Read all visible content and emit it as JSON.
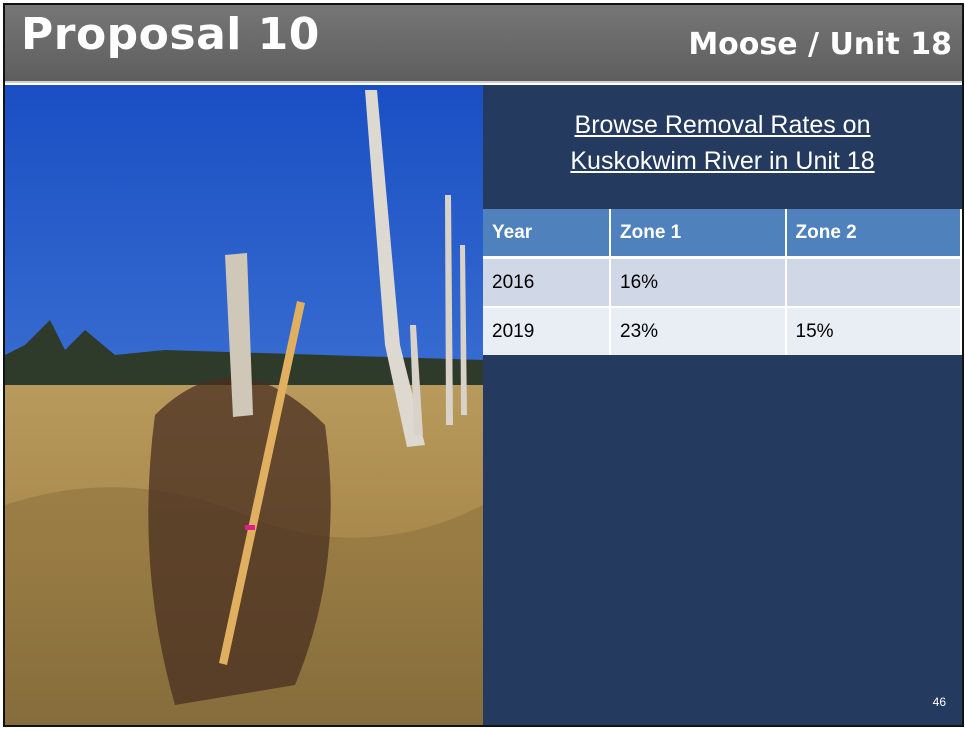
{
  "header": {
    "title": "Proposal 10",
    "subtitle": "Moose / Unit 18"
  },
  "panel": {
    "heading_line1": "Browse Removal Rates on",
    "heading_line2": "Kuskokwim River in Unit 18"
  },
  "table": {
    "columns": [
      "Year",
      "Zone 1",
      "Zone 2"
    ],
    "rows": [
      [
        "2016",
        "16%"
      ],
      [
        "2019",
        "23%",
        "15%"
      ]
    ]
  },
  "page_number": "46"
}
